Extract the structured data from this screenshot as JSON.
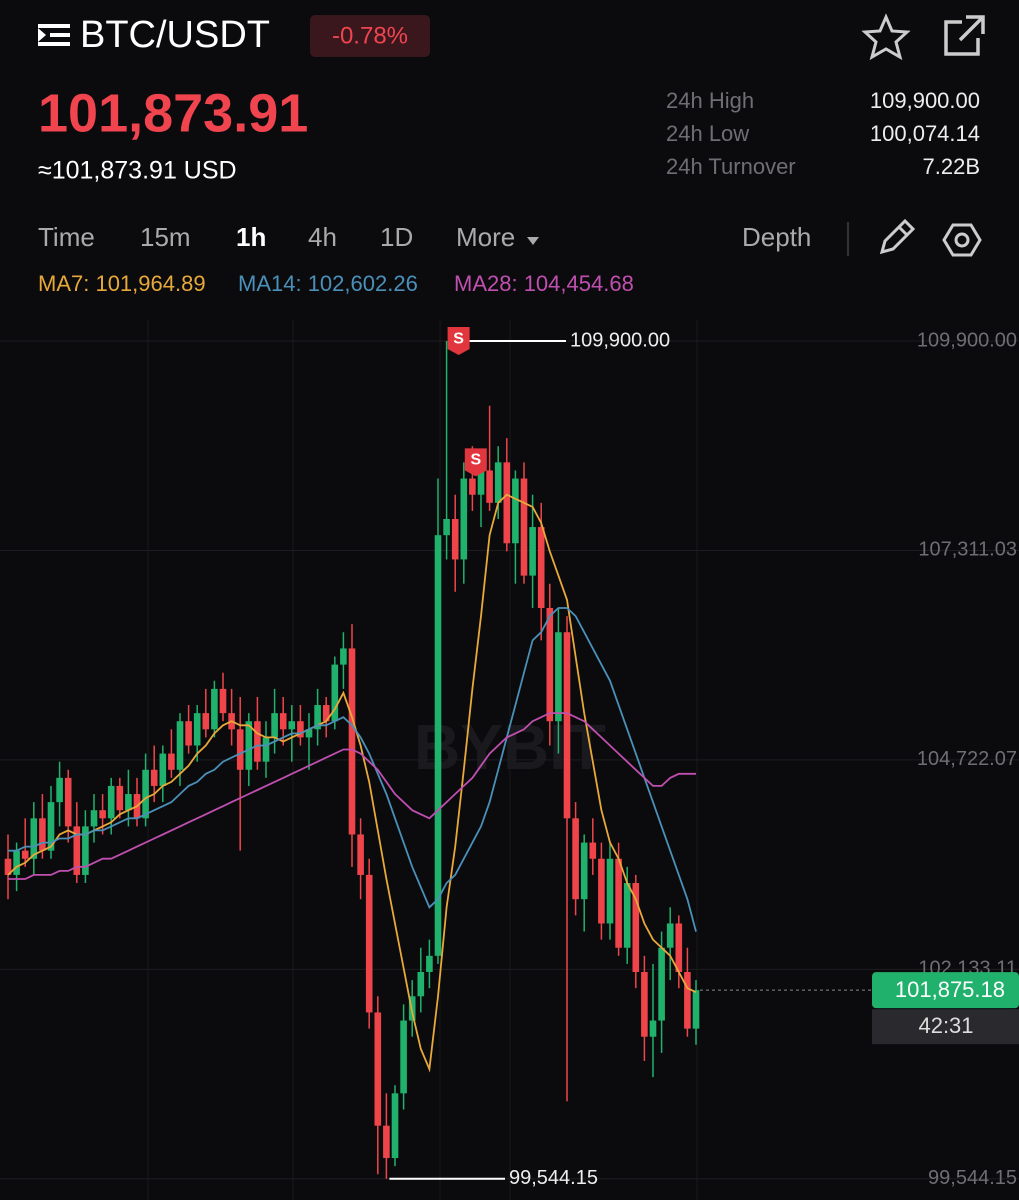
{
  "header": {
    "symbol": "BTC/USDT",
    "change": "-0.78%"
  },
  "price": {
    "last": "101,873.91",
    "usd": "≈101,873.91 USD"
  },
  "stats": [
    {
      "label": "24h High",
      "value": "109,900.00"
    },
    {
      "label": "24h Low",
      "value": "100,074.14"
    },
    {
      "label": "24h Turnover",
      "value": "7.22B"
    }
  ],
  "tabs": [
    "Time",
    "15m",
    "1h",
    "4h",
    "1D",
    "More"
  ],
  "active_tab": 2,
  "depth": "Depth",
  "chart_data": {
    "type": "candlestick",
    "watermark": "BYBIT",
    "up_color": "#20b26c",
    "down_color": "#ef454a",
    "grid": true,
    "ylim": [
      99300,
      110160
    ],
    "yticks": [
      {
        "value": 109900,
        "label": "109,900.00"
      },
      {
        "value": 107311.03,
        "label": "107,311.03"
      },
      {
        "value": 104722.07,
        "label": "104,722.07"
      },
      {
        "value": 102133.11,
        "label": "102,133.11"
      },
      {
        "value": 99544.15,
        "label": "99,544.15"
      }
    ],
    "open": [
      103500,
      103300,
      103600,
      103500,
      104000,
      103600,
      104200,
      104500,
      103900,
      103300,
      103900,
      104100,
      104000,
      104400,
      104100,
      104300,
      104000,
      104600,
      104400,
      104800,
      104600,
      105200,
      104900,
      105300,
      105100,
      105600,
      105300,
      105100,
      104600,
      105200,
      104700,
      105000,
      105300,
      105100,
      105200,
      105000,
      105100,
      105400,
      105200,
      105900,
      106100,
      103800,
      103300,
      101600,
      100200,
      99800,
      100600,
      101500,
      101800,
      102100,
      102300,
      107500,
      107700,
      107200,
      108200,
      108000,
      108300,
      107900,
      108400,
      107400,
      108200,
      107000,
      107600,
      106600,
      105200,
      106300,
      104000,
      103000,
      103700,
      103500,
      102700,
      103500,
      102400,
      103200,
      102100,
      101300,
      101500,
      102400,
      102700,
      102100,
      101400
    ],
    "high": [
      103800,
      103700,
      104000,
      104200,
      104300,
      104400,
      104700,
      104600,
      104200,
      104100,
      104300,
      104300,
      104500,
      104500,
      104600,
      104500,
      104800,
      104900,
      104900,
      105100,
      105300,
      105400,
      105400,
      105600,
      105700,
      105800,
      105600,
      105500,
      105300,
      105500,
      105200,
      105600,
      105500,
      105400,
      105400,
      105300,
      105600,
      105500,
      106000,
      106300,
      106400,
      104000,
      103500,
      101800,
      100600,
      100700,
      101700,
      102000,
      102400,
      102500,
      108200,
      109900,
      108000,
      108400,
      108600,
      108400,
      109100,
      108600,
      108700,
      108300,
      108400,
      108000,
      107900,
      106900,
      106600,
      106500,
      104200,
      103800,
      104000,
      103700,
      103700,
      103700,
      103400,
      103300,
      102300,
      102200,
      102600,
      102900,
      102800,
      102400,
      102000
    ],
    "low": [
      103000,
      103100,
      103400,
      103300,
      103500,
      103500,
      103900,
      103700,
      103200,
      103200,
      103700,
      103800,
      103800,
      104000,
      103900,
      103900,
      103900,
      104200,
      104200,
      104500,
      104400,
      104800,
      104700,
      105000,
      105000,
      105200,
      104900,
      103600,
      104400,
      104600,
      104500,
      104800,
      104900,
      104700,
      104900,
      104600,
      104900,
      105000,
      105100,
      105600,
      103400,
      103000,
      101400,
      99600,
      99544.15,
      99700,
      100400,
      101300,
      101600,
      101900,
      102200,
      107200,
      106800,
      106900,
      107800,
      107600,
      107800,
      107700,
      107300,
      106900,
      106900,
      106600,
      106200,
      104900,
      104800,
      100500,
      102800,
      102600,
      103300,
      102500,
      102500,
      102300,
      102200,
      101900,
      101000,
      100800,
      101100,
      102000,
      101900,
      101300,
      101200
    ],
    "close": [
      103300,
      103600,
      103500,
      104000,
      103600,
      104200,
      104500,
      103900,
      103300,
      103900,
      104100,
      104000,
      104400,
      104100,
      104300,
      104000,
      104600,
      104400,
      104800,
      104600,
      105200,
      104900,
      105300,
      105100,
      105600,
      105300,
      105100,
      104600,
      105200,
      104700,
      105000,
      105300,
      105100,
      105200,
      105000,
      105100,
      105400,
      105200,
      105900,
      106100,
      103800,
      103300,
      101600,
      100200,
      99800,
      100600,
      101500,
      101800,
      102100,
      102300,
      107500,
      107700,
      107200,
      108200,
      108000,
      108300,
      107900,
      108400,
      107400,
      108200,
      107000,
      107600,
      106600,
      105200,
      106300,
      104000,
      103000,
      103700,
      103500,
      102700,
      103500,
      102400,
      103200,
      102100,
      101300,
      101500,
      102400,
      102700,
      102100,
      101400,
      101875.18
    ],
    "series": [
      {
        "name": "MA7: 101,964.89",
        "color": "#e8a93a",
        "values": [
          103300,
          103400,
          103450,
          103550,
          103600,
          103650,
          103800,
          103850,
          103800,
          103800,
          103850,
          103900,
          103950,
          104050,
          104100,
          104150,
          104250,
          104300,
          104400,
          104450,
          104550,
          104650,
          104800,
          104900,
          105050,
          105150,
          105200,
          105150,
          105150,
          105050,
          105000,
          105000,
          104950,
          105000,
          105050,
          105100,
          105150,
          105200,
          105350,
          105550,
          105250,
          104900,
          104450,
          103850,
          103250,
          102700,
          102150,
          101600,
          101150,
          100900,
          101800,
          102900,
          103650,
          104600,
          105600,
          106500,
          107500,
          107900,
          108000,
          107950,
          107900,
          107850,
          107650,
          107300,
          107000,
          106700,
          106000,
          105300,
          104700,
          104100,
          103700,
          103500,
          103200,
          103000,
          102700,
          102500,
          102400,
          102300,
          102100,
          101900,
          101850
        ]
      },
      {
        "name": "MA14: 102,602.26",
        "color": "#4a90b8",
        "values": [
          103600,
          103600,
          103650,
          103650,
          103700,
          103700,
          103750,
          103750,
          103800,
          103800,
          103850,
          103850,
          103900,
          103950,
          104000,
          104000,
          104050,
          104100,
          104150,
          104200,
          104300,
          104400,
          104450,
          104550,
          104600,
          104700,
          104750,
          104800,
          104850,
          104900,
          104900,
          104950,
          105000,
          105050,
          105050,
          105100,
          105150,
          105150,
          105200,
          105250,
          105150,
          105000,
          104800,
          104550,
          104300,
          104000,
          103700,
          103400,
          103150,
          102900,
          103000,
          103200,
          103300,
          103500,
          103700,
          103900,
          104200,
          104600,
          105000,
          105400,
          105800,
          106200,
          106300,
          106500,
          106600,
          106600,
          106500,
          106300,
          106100,
          105900,
          105700,
          105400,
          105100,
          104800,
          104500,
          104200,
          103900,
          103600,
          103300,
          103000,
          102600
        ]
      },
      {
        "name": "MA28: 104,454.68",
        "color": "#c04fb0",
        "values": [
          103250,
          103250,
          103250,
          103300,
          103300,
          103300,
          103350,
          103350,
          103400,
          103400,
          103450,
          103500,
          103500,
          103550,
          103600,
          103650,
          103700,
          103750,
          103800,
          103850,
          103900,
          103950,
          104000,
          104050,
          104100,
          104150,
          104200,
          104250,
          104300,
          104350,
          104400,
          104450,
          104500,
          104550,
          104600,
          104650,
          104700,
          104750,
          104800,
          104850,
          104850,
          104800,
          104700,
          104600,
          104450,
          104300,
          104200,
          104100,
          104050,
          104000,
          104100,
          104200,
          104300,
          104400,
          104500,
          104650,
          104800,
          104900,
          105000,
          105050,
          105100,
          105200,
          105250,
          105300,
          105300,
          105300,
          105250,
          105200,
          105100,
          105000,
          104900,
          104800,
          104700,
          104600,
          104500,
          104400,
          104400,
          104500,
          104550,
          104550,
          104550
        ]
      }
    ],
    "high_marker": {
      "candle": 51,
      "value": 109900,
      "label": "109,900.00"
    },
    "low_marker": {
      "candle": 44,
      "value": 99544.15,
      "label": "99,544.15"
    },
    "sell_signals": [
      {
        "candle": 51,
        "label": "S"
      },
      {
        "candle": 53,
        "label": "S"
      }
    ],
    "last_price": {
      "value": 101875.18,
      "label": "101,875.18"
    },
    "countdown": "42:31"
  }
}
